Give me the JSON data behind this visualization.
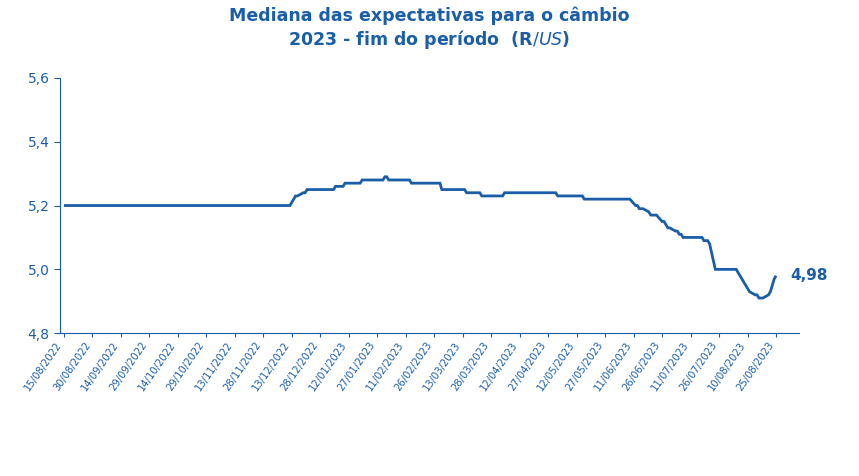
{
  "title_line1": "Mediana das expectativas para o câmbio",
  "title_line2": "2023 - fim do período  (R$/US$)",
  "title_color": "#1A5EA8",
  "line_color": "#1A5EA8",
  "line_width": 2.0,
  "annotation_text": "4,98",
  "annotation_color": "#1A5EA8",
  "ylim": [
    4.8,
    5.65
  ],
  "yticks": [
    4.8,
    5.0,
    5.2,
    5.4,
    5.6
  ],
  "background_color": "#ffffff",
  "tick_color": "#1A5EA8",
  "axis_color": "#1A5EA8",
  "xtick_labels": [
    "15/08/2022",
    "30/08/2022",
    "14/09/2022",
    "29/09/2022",
    "14/10/2022",
    "29/10/2022",
    "13/11/2022",
    "28/11/2022",
    "13/12/2022",
    "28/12/2022",
    "12/01/2023",
    "27/01/2023",
    "11/02/2023",
    "26/02/2023",
    "13/03/2023",
    "28/03/2023",
    "12/04/2023",
    "27/04/2023",
    "12/05/2023",
    "27/05/2023",
    "11/06/2023",
    "26/06/2023",
    "11/07/2023",
    "26/07/2023",
    "10/08/2023",
    "25/08/2023"
  ],
  "dates": [
    "2022-08-15",
    "2022-08-16",
    "2022-08-17",
    "2022-08-18",
    "2022-08-19",
    "2022-08-22",
    "2022-08-23",
    "2022-08-24",
    "2022-08-25",
    "2022-08-26",
    "2022-08-29",
    "2022-08-30",
    "2022-08-31",
    "2022-09-01",
    "2022-09-02",
    "2022-09-05",
    "2022-09-06",
    "2022-09-07",
    "2022-09-08",
    "2022-09-09",
    "2022-09-12",
    "2022-09-13",
    "2022-09-14",
    "2022-09-15",
    "2022-09-16",
    "2022-09-19",
    "2022-09-20",
    "2022-09-21",
    "2022-09-22",
    "2022-09-23",
    "2022-09-26",
    "2022-09-27",
    "2022-09-28",
    "2022-09-29",
    "2022-09-30",
    "2022-10-03",
    "2022-10-04",
    "2022-10-05",
    "2022-10-06",
    "2022-10-07",
    "2022-10-10",
    "2022-10-11",
    "2022-10-12",
    "2022-10-13",
    "2022-10-14",
    "2022-10-17",
    "2022-10-18",
    "2022-10-19",
    "2022-10-20",
    "2022-10-21",
    "2022-10-24",
    "2022-10-25",
    "2022-10-26",
    "2022-10-27",
    "2022-10-28",
    "2022-10-31",
    "2022-11-01",
    "2022-11-02",
    "2022-11-03",
    "2022-11-04",
    "2022-11-07",
    "2022-11-08",
    "2022-11-09",
    "2022-11-10",
    "2022-11-11",
    "2022-11-14",
    "2022-11-15",
    "2022-11-16",
    "2022-11-17",
    "2022-11-18",
    "2022-11-21",
    "2022-11-22",
    "2022-11-23",
    "2022-11-24",
    "2022-11-25",
    "2022-11-28",
    "2022-11-29",
    "2022-11-30",
    "2022-12-01",
    "2022-12-02",
    "2022-12-05",
    "2022-12-06",
    "2022-12-07",
    "2022-12-08",
    "2022-12-09",
    "2022-12-12",
    "2022-12-13",
    "2022-12-14",
    "2022-12-15",
    "2022-12-16",
    "2022-12-19",
    "2022-12-20",
    "2022-12-21",
    "2022-12-22",
    "2022-12-23",
    "2022-12-26",
    "2022-12-27",
    "2022-12-28",
    "2022-12-29",
    "2022-12-30",
    "2023-01-02",
    "2023-01-03",
    "2023-01-04",
    "2023-01-05",
    "2023-01-06",
    "2023-01-09",
    "2023-01-10",
    "2023-01-11",
    "2023-01-12",
    "2023-01-13",
    "2023-01-16",
    "2023-01-17",
    "2023-01-18",
    "2023-01-19",
    "2023-01-20",
    "2023-01-23",
    "2023-01-24",
    "2023-01-25",
    "2023-01-26",
    "2023-01-27",
    "2023-01-30",
    "2023-01-31",
    "2023-02-01",
    "2023-02-02",
    "2023-02-03",
    "2023-02-06",
    "2023-02-07",
    "2023-02-08",
    "2023-02-09",
    "2023-02-10",
    "2023-02-13",
    "2023-02-14",
    "2023-02-15",
    "2023-02-16",
    "2023-02-17",
    "2023-02-20",
    "2023-02-21",
    "2023-02-22",
    "2023-02-23",
    "2023-02-24",
    "2023-02-27",
    "2023-02-28",
    "2023-03-01",
    "2023-03-02",
    "2023-03-03",
    "2023-03-06",
    "2023-03-07",
    "2023-03-08",
    "2023-03-09",
    "2023-03-10",
    "2023-03-13",
    "2023-03-14",
    "2023-03-15",
    "2023-03-16",
    "2023-03-17",
    "2023-03-20",
    "2023-03-21",
    "2023-03-22",
    "2023-03-23",
    "2023-03-24",
    "2023-03-27",
    "2023-03-28",
    "2023-03-29",
    "2023-03-30",
    "2023-03-31",
    "2023-04-03",
    "2023-04-04",
    "2023-04-05",
    "2023-04-06",
    "2023-04-07",
    "2023-04-10",
    "2023-04-11",
    "2023-04-12",
    "2023-04-13",
    "2023-04-14",
    "2023-04-17",
    "2023-04-18",
    "2023-04-19",
    "2023-04-20",
    "2023-04-21",
    "2023-04-24",
    "2023-04-25",
    "2023-04-26",
    "2023-04-27",
    "2023-04-28",
    "2023-05-01",
    "2023-05-02",
    "2023-05-03",
    "2023-05-04",
    "2023-05-05",
    "2023-05-08",
    "2023-05-09",
    "2023-05-10",
    "2023-05-11",
    "2023-05-12",
    "2023-05-15",
    "2023-05-16",
    "2023-05-17",
    "2023-05-18",
    "2023-05-19",
    "2023-05-22",
    "2023-05-23",
    "2023-05-24",
    "2023-05-25",
    "2023-05-26",
    "2023-05-29",
    "2023-05-30",
    "2023-05-31",
    "2023-06-01",
    "2023-06-02",
    "2023-06-05",
    "2023-06-06",
    "2023-06-07",
    "2023-06-08",
    "2023-06-09",
    "2023-06-12",
    "2023-06-13",
    "2023-06-14",
    "2023-06-15",
    "2023-06-16",
    "2023-06-19",
    "2023-06-20",
    "2023-06-21",
    "2023-06-22",
    "2023-06-23",
    "2023-06-26",
    "2023-06-27",
    "2023-06-28",
    "2023-06-29",
    "2023-06-30",
    "2023-07-03",
    "2023-07-04",
    "2023-07-05",
    "2023-07-06",
    "2023-07-07",
    "2023-07-10",
    "2023-07-11",
    "2023-07-12",
    "2023-07-13",
    "2023-07-14",
    "2023-07-17",
    "2023-07-18",
    "2023-07-19",
    "2023-07-20",
    "2023-07-21",
    "2023-07-24",
    "2023-07-25",
    "2023-07-26",
    "2023-07-27",
    "2023-07-28",
    "2023-07-31",
    "2023-08-01",
    "2023-08-02",
    "2023-08-03",
    "2023-08-04",
    "2023-08-07",
    "2023-08-08",
    "2023-08-09",
    "2023-08-10",
    "2023-08-11",
    "2023-08-14",
    "2023-08-15",
    "2023-08-16",
    "2023-08-17",
    "2023-08-18",
    "2023-08-21",
    "2023-08-22",
    "2023-08-23",
    "2023-08-24",
    "2023-08-25"
  ],
  "values": [
    5.2,
    5.2,
    5.2,
    5.2,
    5.2,
    5.2,
    5.2,
    5.2,
    5.2,
    5.2,
    5.2,
    5.2,
    5.2,
    5.2,
    5.2,
    5.2,
    5.2,
    5.2,
    5.2,
    5.2,
    5.2,
    5.2,
    5.2,
    5.2,
    5.2,
    5.2,
    5.2,
    5.2,
    5.2,
    5.2,
    5.2,
    5.2,
    5.2,
    5.2,
    5.2,
    5.2,
    5.2,
    5.2,
    5.2,
    5.2,
    5.2,
    5.2,
    5.2,
    5.2,
    5.2,
    5.2,
    5.2,
    5.2,
    5.2,
    5.2,
    5.2,
    5.2,
    5.2,
    5.2,
    5.2,
    5.2,
    5.2,
    5.2,
    5.2,
    5.2,
    5.2,
    5.2,
    5.2,
    5.2,
    5.2,
    5.2,
    5.2,
    5.2,
    5.2,
    5.2,
    5.2,
    5.2,
    5.2,
    5.2,
    5.2,
    5.2,
    5.2,
    5.2,
    5.2,
    5.2,
    5.2,
    5.2,
    5.2,
    5.2,
    5.2,
    5.2,
    5.21,
    5.22,
    5.23,
    5.23,
    5.24,
    5.24,
    5.25,
    5.25,
    5.25,
    5.25,
    5.25,
    5.25,
    5.25,
    5.25,
    5.25,
    5.25,
    5.25,
    5.26,
    5.26,
    5.26,
    5.27,
    5.27,
    5.27,
    5.27,
    5.27,
    5.27,
    5.27,
    5.28,
    5.28,
    5.28,
    5.28,
    5.28,
    5.28,
    5.28,
    5.28,
    5.29,
    5.29,
    5.28,
    5.28,
    5.28,
    5.28,
    5.28,
    5.28,
    5.28,
    5.28,
    5.27,
    5.27,
    5.27,
    5.27,
    5.27,
    5.27,
    5.27,
    5.27,
    5.27,
    5.27,
    5.27,
    5.27,
    5.25,
    5.25,
    5.25,
    5.25,
    5.25,
    5.25,
    5.25,
    5.25,
    5.25,
    5.24,
    5.24,
    5.24,
    5.24,
    5.24,
    5.24,
    5.23,
    5.23,
    5.23,
    5.23,
    5.23,
    5.23,
    5.23,
    5.23,
    5.24,
    5.24,
    5.24,
    5.24,
    5.24,
    5.24,
    5.24,
    5.24,
    5.24,
    5.24,
    5.24,
    5.24,
    5.24,
    5.24,
    5.24,
    5.24,
    5.24,
    5.24,
    5.24,
    5.24,
    5.23,
    5.23,
    5.23,
    5.23,
    5.23,
    5.23,
    5.23,
    5.23,
    5.23,
    5.23,
    5.22,
    5.22,
    5.22,
    5.22,
    5.22,
    5.22,
    5.22,
    5.22,
    5.22,
    5.22,
    5.22,
    5.22,
    5.22,
    5.22,
    5.22,
    5.22,
    5.22,
    5.22,
    5.22,
    5.2,
    5.2,
    5.19,
    5.19,
    5.19,
    5.18,
    5.17,
    5.17,
    5.17,
    5.17,
    5.15,
    5.15,
    5.14,
    5.13,
    5.13,
    5.12,
    5.12,
    5.11,
    5.11,
    5.1,
    5.1,
    5.1,
    5.1,
    5.1,
    5.1,
    5.1,
    5.09,
    5.09,
    5.09,
    5.08,
    5.0,
    5.0,
    5.0,
    5.0,
    5.0,
    5.0,
    5.0,
    5.0,
    5.0,
    5.0,
    4.97,
    4.96,
    4.95,
    4.94,
    4.93,
    4.92,
    4.92,
    4.91,
    4.91,
    4.91,
    4.92,
    4.93,
    4.95,
    4.97,
    4.98
  ]
}
